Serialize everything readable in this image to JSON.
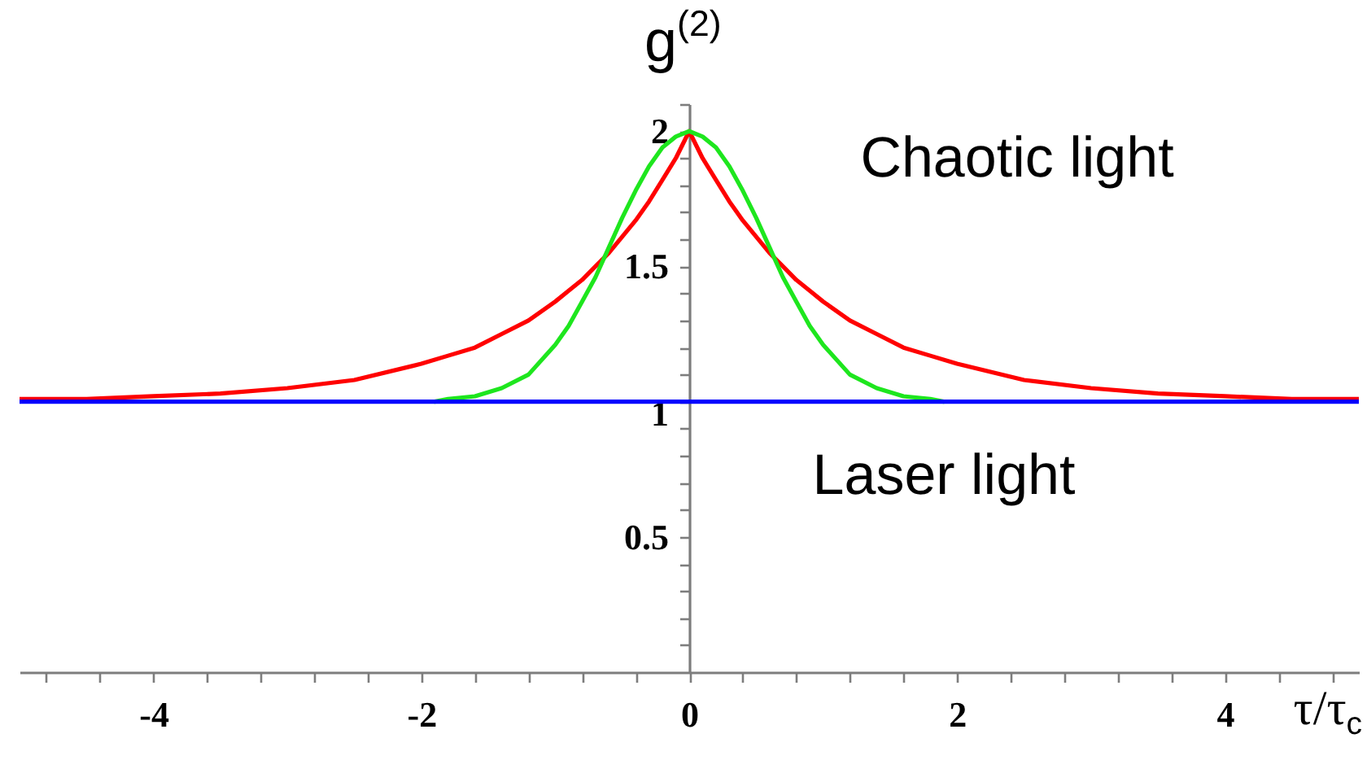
{
  "chart_data": {
    "type": "line",
    "xlabel": "τ/τ$_{c}$",
    "ylabel": "g$^{(2)}$",
    "annotations": [
      "Chaotic light",
      "Laser light"
    ],
    "series": [
      {
        "color": "#ff0000",
        "x": [
          -5,
          -4.5,
          -4,
          -3.5,
          -3,
          -2.5,
          -2,
          -1.8,
          -1.6,
          -1.4,
          -1.2,
          -1,
          -0.9,
          -0.8,
          -0.7,
          -0.6,
          -0.5,
          -0.4,
          -0.3,
          -0.2,
          -0.1,
          0,
          0.1,
          0.2,
          0.3,
          0.4,
          0.5,
          0.6,
          0.7,
          0.8,
          0.9,
          1,
          1.2,
          1.4,
          1.6,
          1.8,
          2,
          2.5,
          3,
          3.5,
          4,
          4.5,
          5
        ],
        "values": [
          1.01,
          1.01,
          1.02,
          1.03,
          1.05,
          1.08,
          1.14,
          1.17,
          1.2,
          1.25,
          1.3,
          1.37,
          1.41,
          1.45,
          1.5,
          1.55,
          1.61,
          1.67,
          1.74,
          1.82,
          1.9,
          2,
          1.9,
          1.82,
          1.74,
          1.67,
          1.61,
          1.55,
          1.5,
          1.45,
          1.41,
          1.37,
          1.3,
          1.25,
          1.2,
          1.17,
          1.14,
          1.08,
          1.05,
          1.03,
          1.02,
          1.01,
          1.01
        ]
      },
      {
        "color": "#1ee61e",
        "x": [
          -1.9,
          -1.8,
          -1.6,
          -1.4,
          -1.2,
          -1,
          -0.9,
          -0.8,
          -0.7,
          -0.6,
          -0.5,
          -0.4,
          -0.3,
          -0.2,
          -0.1,
          0,
          0.1,
          0.2,
          0.3,
          0.4,
          0.5,
          0.6,
          0.7,
          0.8,
          0.9,
          1,
          1.2,
          1.4,
          1.6,
          1.8,
          1.9
        ],
        "values": [
          1,
          1.01,
          1.02,
          1.05,
          1.1,
          1.21,
          1.28,
          1.37,
          1.46,
          1.57,
          1.68,
          1.78,
          1.87,
          1.94,
          1.98,
          2,
          1.98,
          1.94,
          1.87,
          1.78,
          1.68,
          1.57,
          1.46,
          1.37,
          1.28,
          1.21,
          1.1,
          1.05,
          1.02,
          1.01,
          1
        ]
      },
      {
        "color": "#0000ff",
        "x": [
          -5,
          5
        ],
        "values": [
          1,
          1
        ]
      }
    ],
    "xlim": [
      -5,
      5
    ],
    "ylim": [
      0,
      2.1
    ],
    "xticks": [
      {
        "value": -4.8,
        "label": null
      },
      {
        "value": -4.4,
        "label": null
      },
      -4,
      {
        "value": -3.6,
        "label": null
      },
      {
        "value": -3.2,
        "label": null
      },
      {
        "value": -2.8,
        "label": null
      },
      {
        "value": -2.4,
        "label": null
      },
      -2,
      {
        "value": -1.6,
        "label": null
      },
      {
        "value": -1.2,
        "label": null
      },
      {
        "value": -0.8,
        "label": null
      },
      {
        "value": -0.4,
        "label": null
      },
      0,
      {
        "value": 0.4,
        "label": null
      },
      {
        "value": 0.8,
        "label": null
      },
      {
        "value": 1.2,
        "label": null
      },
      {
        "value": 1.6,
        "label": null
      },
      2,
      {
        "value": 2.4,
        "label": null
      },
      {
        "value": 2.8,
        "label": null
      },
      {
        "value": 3.2,
        "label": null
      },
      {
        "value": 3.6,
        "label": null
      },
      4,
      {
        "value": 4.4,
        "label": null
      },
      {
        "value": 4.8,
        "label": null
      }
    ],
    "yticks": [
      {
        "value": 0.1,
        "label": null
      },
      {
        "value": 0.2,
        "label": null
      },
      {
        "value": 0.3,
        "label": null
      },
      {
        "value": 0.4,
        "label": null
      },
      0.5,
      {
        "value": 0.6,
        "label": null
      },
      {
        "value": 0.7,
        "label": null
      },
      {
        "value": 0.8,
        "label": null
      },
      {
        "value": 0.9,
        "label": null
      },
      1,
      {
        "value": 1.1,
        "label": null
      },
      {
        "value": 1.2,
        "label": null
      },
      {
        "value": 1.3,
        "label": null
      },
      {
        "value": 1.4,
        "label": null
      },
      1.5,
      {
        "value": 1.6,
        "label": null
      },
      {
        "value": 1.7,
        "label": null
      },
      {
        "value": 1.8,
        "label": null
      },
      {
        "value": 1.9,
        "label": null
      },
      2,
      {
        "value": 2.1,
        "label": null
      }
    ]
  }
}
